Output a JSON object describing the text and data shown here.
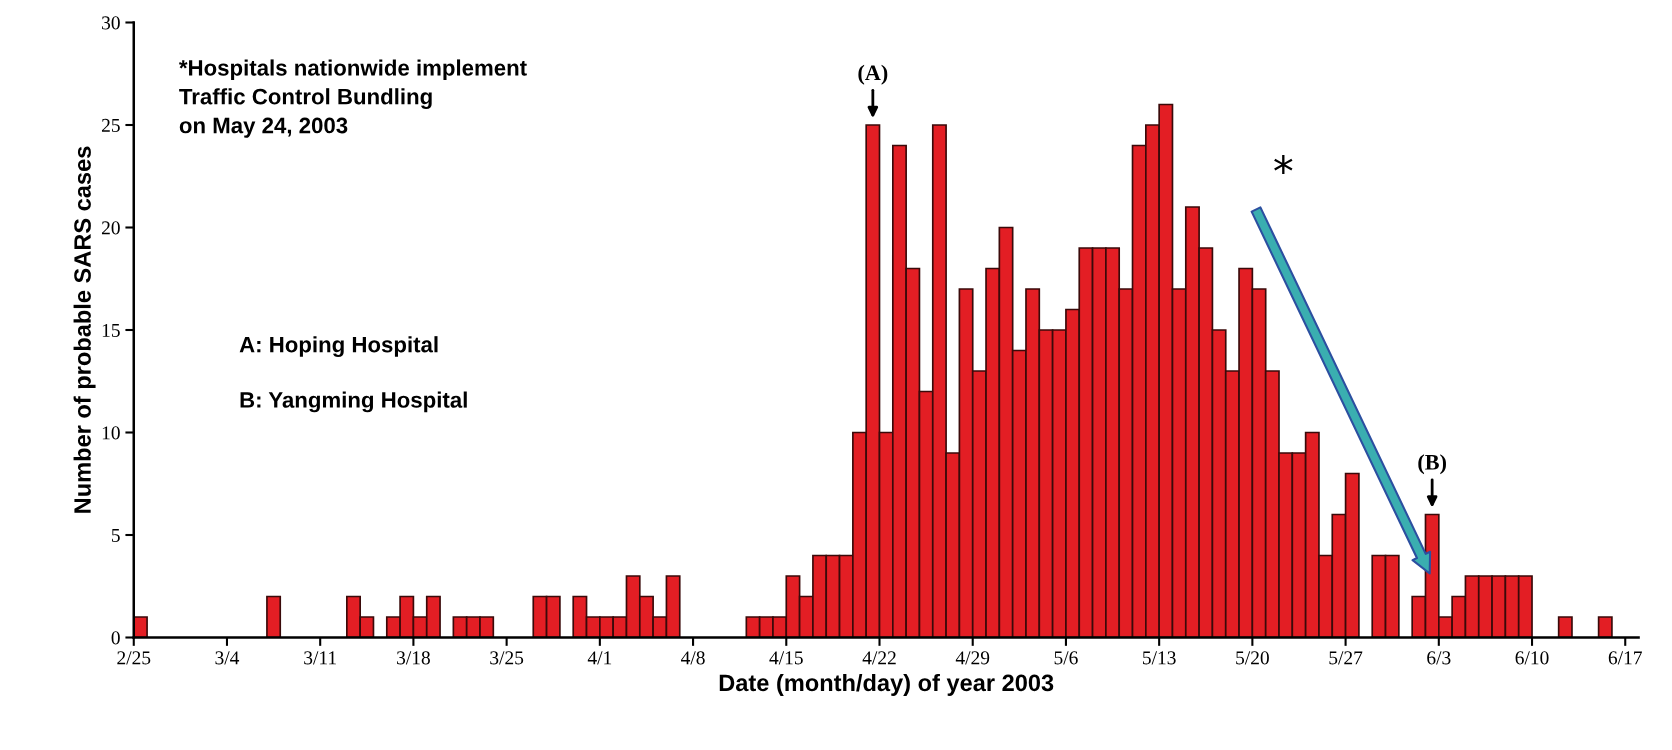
{
  "chart_data": {
    "type": "bar",
    "xlabel": "Date (month/day) of year 2003",
    "ylabel": "Number of probable SARS cases",
    "x": [
      "2003-02-25",
      "2003-02-26",
      "2003-02-27",
      "2003-02-28",
      "2003-03-01",
      "2003-03-02",
      "2003-03-03",
      "2003-03-04",
      "2003-03-05",
      "2003-03-06",
      "2003-03-07",
      "2003-03-08",
      "2003-03-09",
      "2003-03-10",
      "2003-03-11",
      "2003-03-12",
      "2003-03-13",
      "2003-03-14",
      "2003-03-15",
      "2003-03-16",
      "2003-03-17",
      "2003-03-18",
      "2003-03-19",
      "2003-03-20",
      "2003-03-21",
      "2003-03-22",
      "2003-03-23",
      "2003-03-24",
      "2003-03-25",
      "2003-03-26",
      "2003-03-27",
      "2003-03-28",
      "2003-03-29",
      "2003-03-30",
      "2003-03-31",
      "2003-04-01",
      "2003-04-02",
      "2003-04-03",
      "2003-04-04",
      "2003-04-05",
      "2003-04-06",
      "2003-04-07",
      "2003-04-08",
      "2003-04-09",
      "2003-04-10",
      "2003-04-11",
      "2003-04-12",
      "2003-04-13",
      "2003-04-14",
      "2003-04-15",
      "2003-04-16",
      "2003-04-17",
      "2003-04-18",
      "2003-04-19",
      "2003-04-20",
      "2003-04-21",
      "2003-04-22",
      "2003-04-23",
      "2003-04-24",
      "2003-04-25",
      "2003-04-26",
      "2003-04-27",
      "2003-04-28",
      "2003-04-29",
      "2003-04-30",
      "2003-05-01",
      "2003-05-02",
      "2003-05-03",
      "2003-05-04",
      "2003-05-05",
      "2003-05-06",
      "2003-05-07",
      "2003-05-08",
      "2003-05-09",
      "2003-05-10",
      "2003-05-11",
      "2003-05-12",
      "2003-05-13",
      "2003-05-14",
      "2003-05-15",
      "2003-05-16",
      "2003-05-17",
      "2003-05-18",
      "2003-05-19",
      "2003-05-20",
      "2003-05-21",
      "2003-05-22",
      "2003-05-23",
      "2003-05-24",
      "2003-05-25",
      "2003-05-26",
      "2003-05-27",
      "2003-05-28",
      "2003-05-29",
      "2003-05-30",
      "2003-05-31",
      "2003-06-01",
      "2003-06-02",
      "2003-06-03",
      "2003-06-04",
      "2003-06-05",
      "2003-06-06",
      "2003-06-07",
      "2003-06-08",
      "2003-06-09",
      "2003-06-10",
      "2003-06-11",
      "2003-06-12",
      "2003-06-13",
      "2003-06-14",
      "2003-06-15",
      "2003-06-16"
    ],
    "values": [
      1,
      0,
      0,
      0,
      0,
      0,
      0,
      0,
      0,
      0,
      2,
      0,
      0,
      0,
      0,
      0,
      2,
      1,
      0,
      1,
      2,
      1,
      2,
      0,
      1,
      1,
      1,
      0,
      0,
      0,
      2,
      2,
      0,
      2,
      1,
      1,
      1,
      3,
      2,
      1,
      3,
      0,
      0,
      0,
      0,
      0,
      1,
      1,
      1,
      3,
      2,
      4,
      4,
      4,
      10,
      25,
      10,
      24,
      18,
      12,
      25,
      9,
      17,
      13,
      18,
      20,
      14,
      17,
      15,
      15,
      16,
      19,
      19,
      19,
      17,
      24,
      25,
      26,
      17,
      21,
      19,
      15,
      13,
      18,
      17,
      13,
      9,
      9,
      10,
      4,
      6,
      8,
      0,
      4,
      4,
      0,
      2,
      6,
      1,
      2,
      3,
      3,
      3,
      3,
      3,
      0,
      0,
      1,
      0,
      0,
      1,
      0
    ],
    "color": "#e31e24",
    "xlim": [
      "2003-02-25",
      "2003-06-18"
    ],
    "xticks": [
      {
        "value": "2003-02-25",
        "label": "2/25"
      },
      {
        "value": "2003-03-04",
        "label": "3/4"
      },
      {
        "value": "2003-03-11",
        "label": "3/11"
      },
      {
        "value": "2003-03-18",
        "label": "3/18"
      },
      {
        "value": "2003-03-25",
        "label": "3/25"
      },
      {
        "value": "2003-04-01",
        "label": "4/1"
      },
      {
        "value": "2003-04-08",
        "label": "4/8"
      },
      {
        "value": "2003-04-15",
        "label": "4/15"
      },
      {
        "value": "2003-04-22",
        "label": "4/22"
      },
      {
        "value": "2003-04-29",
        "label": "4/29"
      },
      {
        "value": "2003-05-06",
        "label": "5/6"
      },
      {
        "value": "2003-05-13",
        "label": "5/13"
      },
      {
        "value": "2003-05-20",
        "label": "5/20"
      },
      {
        "value": "2003-05-27",
        "label": "5/27"
      },
      {
        "value": "2003-06-03",
        "label": "6/3"
      },
      {
        "value": "2003-06-10",
        "label": "6/10"
      },
      {
        "value": "2003-06-17",
        "label": "6/17"
      }
    ],
    "ylim": [
      0,
      30
    ],
    "yticks": [
      0,
      5,
      10,
      15,
      20,
      25,
      30
    ],
    "grid": false,
    "annotations": [
      {
        "text": "(A)",
        "x": "2003-04-21",
        "y": 25
      },
      {
        "text": "(B)",
        "x": "2003-06-02",
        "y": 6
      },
      "*",
      "*Hospitals nationwide implement\nTraffic Control Bundling\non May 24, 2003",
      "A: Hoping Hospital",
      "B: Yangming Hospital"
    ]
  }
}
